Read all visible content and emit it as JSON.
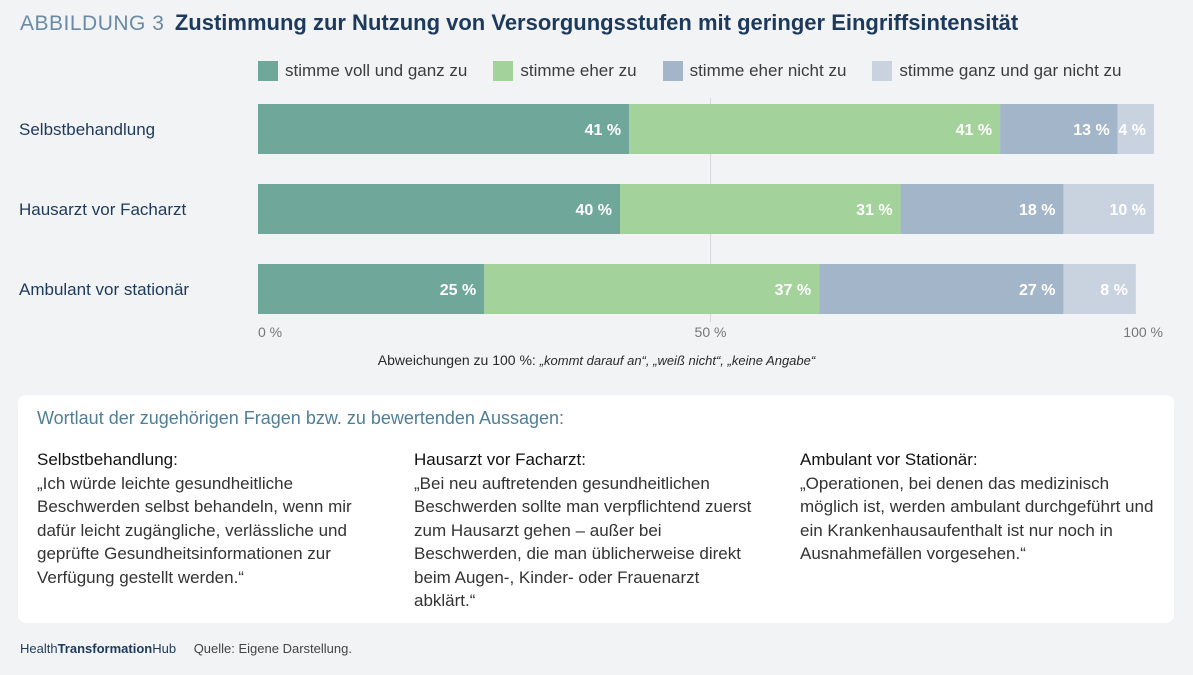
{
  "header": {
    "label": "ABBILDUNG 3",
    "title": "Zustimmung zur Nutzung von Versorgungsstufen mit geringer Eingriffsintensität"
  },
  "legend": [
    {
      "label": "stimme voll und ganz zu",
      "color": "#6fa89a"
    },
    {
      "label": "stimme eher zu",
      "color": "#a3d29a"
    },
    {
      "label": "stimme eher nicht zu",
      "color": "#a3b5c8"
    },
    {
      "label": "stimme ganz und gar nicht zu",
      "color": "#c9d3df"
    }
  ],
  "chart_data": {
    "type": "bar",
    "orientation": "horizontal",
    "stacked": true,
    "categories": [
      "Selbstbehandlung",
      "Hausarzt vor Facharzt",
      "Ambulant vor stationär"
    ],
    "series": [
      {
        "name": "stimme voll und ganz zu",
        "values": [
          41,
          40,
          25
        ],
        "labels": [
          "41 %",
          "40 %",
          "25 %"
        ],
        "color": "#6fa89a"
      },
      {
        "name": "stimme eher zu",
        "values": [
          41,
          31,
          37
        ],
        "labels": [
          "41 %",
          "31 %",
          "37 %"
        ],
        "color": "#a3d29a"
      },
      {
        "name": "stimme eher nicht zu",
        "values": [
          13,
          18,
          27
        ],
        "labels": [
          "13 %",
          "18 %",
          "27 %"
        ],
        "color": "#a3b5c8"
      },
      {
        "name": "stimme ganz und gar nicht zu",
        "values": [
          4,
          10,
          8
        ],
        "labels": [
          "4 %",
          "10 %",
          "8 %"
        ],
        "color": "#c9d3df"
      }
    ],
    "xlim": [
      0,
      100
    ],
    "xticks": [
      0,
      50,
      100
    ],
    "xtick_labels": [
      "0 %",
      "50 %",
      "100 %"
    ],
    "grid": "vertical at 50 %",
    "legend_position": "top"
  },
  "note": {
    "prefix": "Abweichungen zu 100 %:",
    "text": "„kommt darauf an“, „weiß nicht“, „keine Angabe“"
  },
  "questions": {
    "heading": "Wortlaut der zugehörigen Fragen bzw. zu bewertenden Aussagen:",
    "items": [
      {
        "title": "Selbstbehandlung:",
        "text": "„Ich würde leichte gesundheitliche Beschwerden selbst behandeln, wenn mir dafür leicht zugängliche, verlässliche und geprüfte Gesundheitsinformationen zur Verfügung gestellt werden.“"
      },
      {
        "title": "Hausarzt vor Facharzt:",
        "text": "„Bei neu auftretenden gesundheitlichen Beschwerden sollte man verpflichtend zuerst zum Hausarzt gehen – außer bei Beschwerden, die man üblicherweise direkt beim Augen-, Kinder- oder Frauenarzt abklärt.“"
      },
      {
        "title": "Ambulant vor Stationär:",
        "text": "„Operationen, bei denen das medizinisch möglich ist, werden ambulant durchgeführt und ein Krankenhausaufenthalt ist nur noch in Ausnahmefällen vorgesehen.“"
      }
    ]
  },
  "footer": {
    "brand_a": "Health",
    "brand_b": "Transformation",
    "brand_c": "Hub",
    "source": "Quelle: Eigene Darstellung."
  }
}
